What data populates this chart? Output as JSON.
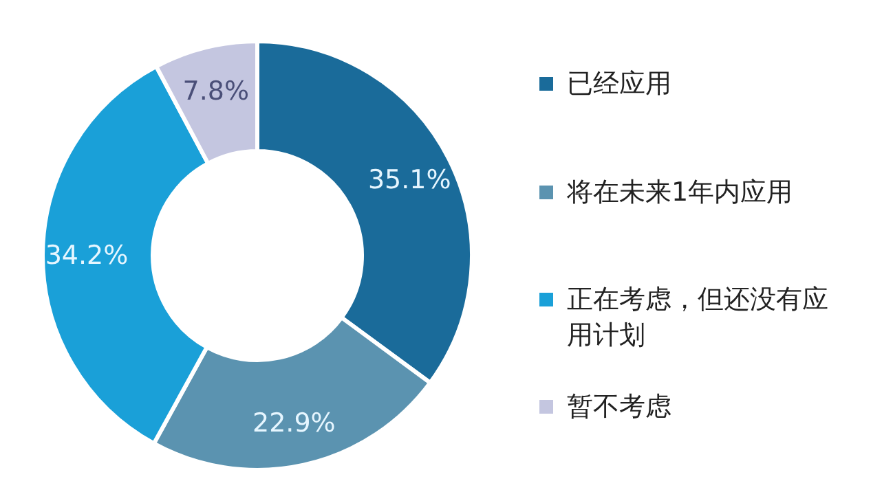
{
  "chart_data": {
    "type": "donut",
    "categories": [
      "已经应用",
      "将在未来1年内应用",
      "正在考虑，但还没有应用计划",
      "暂不考虑"
    ],
    "values": [
      35.1,
      22.9,
      34.2,
      7.8
    ],
    "value_labels": [
      "35.1%",
      "22.9%",
      "34.2%",
      "7.8%"
    ],
    "colors": [
      "#1a6b9a",
      "#5b93b0",
      "#1aa0d8",
      "#c4c6e0"
    ],
    "legend": "right"
  }
}
